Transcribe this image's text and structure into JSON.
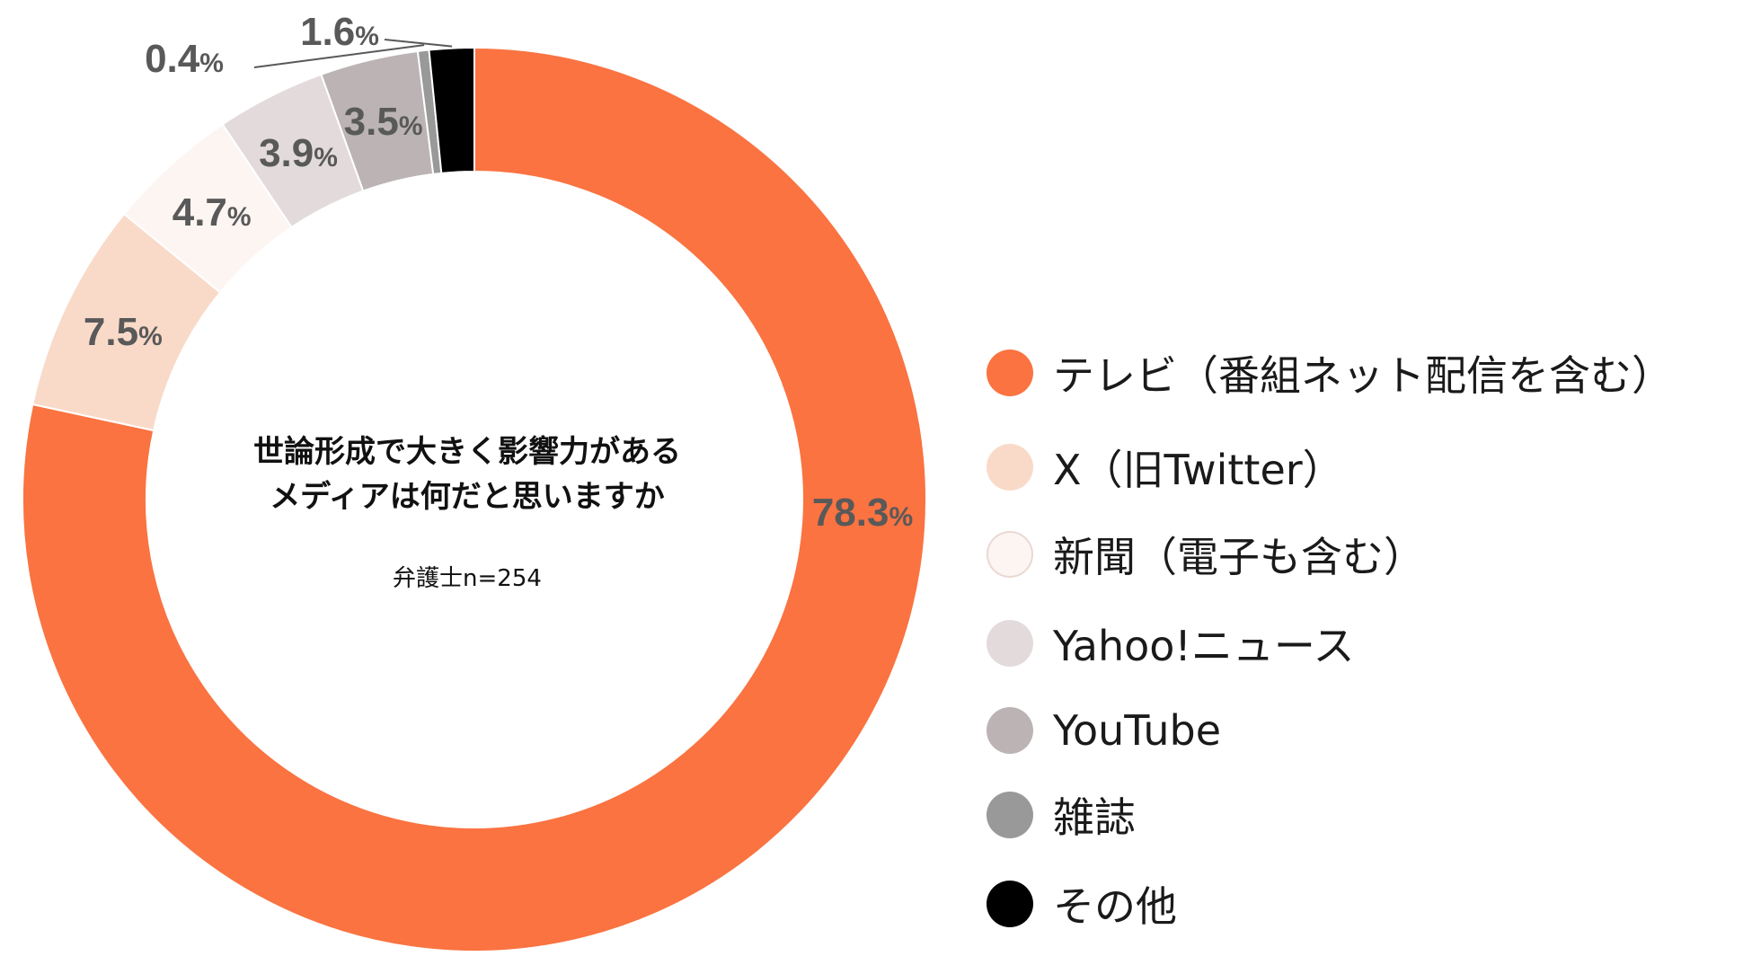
{
  "chart_data": {
    "type": "pie",
    "subtype": "donut",
    "title_lines": [
      "世論形成で大きく影響力がある",
      "メディアは何だと思いますか"
    ],
    "note": "弁護士n=254",
    "unit": "%",
    "slices": [
      {
        "label": "テレビ（番組ネット配信を含む）",
        "value": 78.3,
        "display": "78.3",
        "color": "#fa7341"
      },
      {
        "label": "X（旧Twitter）",
        "value": 7.5,
        "display": "7.5",
        "color": "#f9dac9"
      },
      {
        "label": "新聞（電子も含む）",
        "value": 4.7,
        "display": "4.7",
        "color": "#fdf5f2"
      },
      {
        "label": "Yahoo!ニュース",
        "value": 3.9,
        "display": "3.9",
        "color": "#e3dbdb"
      },
      {
        "label": "YouTube",
        "value": 3.5,
        "display": "3.5",
        "color": "#bcb4b4"
      },
      {
        "label": "雑誌",
        "value": 0.4,
        "display": "0.4",
        "color": "#999999"
      },
      {
        "label": "その他",
        "value": 1.6,
        "display": "1.6",
        "color": "#000000"
      }
    ],
    "legend_position": "right"
  }
}
